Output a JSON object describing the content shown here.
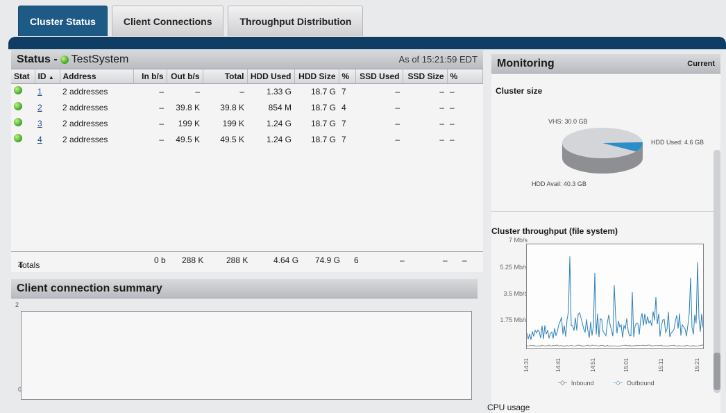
{
  "tabs": [
    {
      "label": "Cluster Status"
    },
    {
      "label": "Client Connections"
    },
    {
      "label": "Throughput Distribution"
    }
  ],
  "status": {
    "title": "Status -",
    "system_name": "TestSystem",
    "as_of": "As of 15:21:59 EDT",
    "columns": [
      "Stat",
      "ID",
      "Address",
      "In b/s",
      "Out b/s",
      "Total",
      "HDD Used",
      "HDD Size",
      "%",
      "SSD Used",
      "SSD Size",
      "%"
    ],
    "rows": [
      {
        "id": "1",
        "address": "2 addresses",
        "in": "–",
        "out": "–",
        "total": "–",
        "hdd_used": "1.33 G",
        "hdd_size": "18.7 G",
        "pct": "7",
        "ssd_used": "–",
        "ssd_size": "–",
        "ssd_pct": "–"
      },
      {
        "id": "2",
        "address": "2 addresses",
        "in": "–",
        "out": "39.8 K",
        "total": "39.8 K",
        "hdd_used": "854 M",
        "hdd_size": "18.7 G",
        "pct": "4",
        "ssd_used": "–",
        "ssd_size": "–",
        "ssd_pct": "–"
      },
      {
        "id": "3",
        "address": "2 addresses",
        "in": "–",
        "out": "199 K",
        "total": "199 K",
        "hdd_used": "1.24 G",
        "hdd_size": "18.7 G",
        "pct": "7",
        "ssd_used": "–",
        "ssd_size": "–",
        "ssd_pct": "–"
      },
      {
        "id": "4",
        "address": "2 addresses",
        "in": "–",
        "out": "49.5 K",
        "total": "49.5 K",
        "hdd_used": "1.24 G",
        "hdd_size": "18.7 G",
        "pct": "7",
        "ssd_used": "–",
        "ssd_size": "–",
        "ssd_pct": "–"
      }
    ],
    "totals": {
      "label": "Totals",
      "count": "4",
      "in": "0 b",
      "out": "288 K",
      "total": "288 K",
      "hdd_used": "4.64 G",
      "hdd_size": "74.9 G",
      "pct": "6",
      "ssd_used": "–",
      "ssd_size": "–",
      "ssd_pct": "–"
    }
  },
  "client_summary": {
    "title": "Client connection summary",
    "y_max": "2",
    "y_min": "0"
  },
  "monitoring": {
    "title": "Monitoring",
    "current": "Current",
    "cluster_size_label": "Cluster size",
    "pie": {
      "vhs": "VHS: 30.0 GB",
      "hdd_used": "HDD Used: 4.6 GB",
      "hdd_avail": "HDD Avail: 40.3 GB",
      "hdd_used_gb": 4.6,
      "hdd_avail_gb": 40.3
    },
    "throughput_label": "Cluster throughput (file system)",
    "y_ticks": [
      "7 Mb/s",
      "5.25 Mb/s",
      "3.5 Mb/s",
      "1.75 Mb/s"
    ],
    "x_ticks": [
      "14:31",
      "14:41",
      "14:51",
      "15:01",
      "15:11",
      "15:21"
    ],
    "legend_inbound": "Inbound",
    "legend_outbound": "Outbound",
    "cpu_label": "CPU usage"
  },
  "colors": {
    "accent": "#0f3d63",
    "active_tab": "#1d5a86",
    "status_ok": "#3fa21b",
    "series_outbound": "#2b7fb8"
  }
}
